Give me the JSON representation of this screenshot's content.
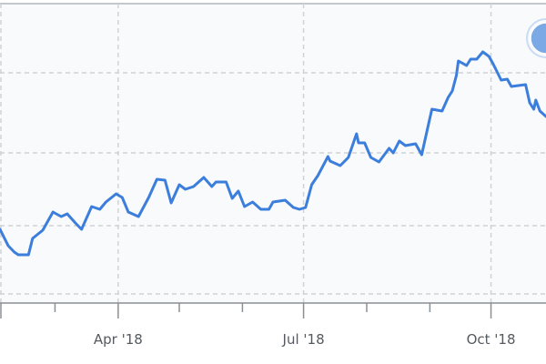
{
  "chart_data": {
    "type": "line",
    "title": "",
    "xlabel": "",
    "ylabel": "",
    "x_ticks": [
      {
        "date": "2018-02-01",
        "label": ""
      },
      {
        "date": "2018-03-01",
        "label": ""
      },
      {
        "date": "2018-04-01",
        "label": "Apr '18"
      },
      {
        "date": "2018-05-01",
        "label": ""
      },
      {
        "date": "2018-06-01",
        "label": ""
      },
      {
        "date": "2018-07-01",
        "label": "Jul '18"
      },
      {
        "date": "2018-08-01",
        "label": ""
      },
      {
        "date": "2018-09-01",
        "label": ""
      },
      {
        "date": "2018-10-01",
        "label": "Oct '18"
      }
    ],
    "x_gridlines": [
      "2018-02-01",
      "2018-04-01",
      "2018-07-01",
      "2018-10-01"
    ],
    "xlim": [
      "2018-02-02",
      "2018-10-28"
    ],
    "ylim": [
      7,
      336
    ],
    "y_gridlines": [
      17,
      92,
      172,
      260
    ],
    "y_tick_labels_visible": false,
    "grid": true,
    "legend": "none",
    "colors": {
      "line": "#3c7edb",
      "grid": "#cfd3d6",
      "axis": "#8a8f94",
      "plot_bg": "#f9fafb",
      "marker": "#7aa9e6"
    },
    "event_marker_icon": "flag-circle-icon",
    "series": [
      {
        "x": [
          "2018-02-02",
          "2018-02-06",
          "2018-02-09",
          "2018-02-11",
          "2018-02-16",
          "2018-02-18",
          "2018-02-23",
          "2018-02-28",
          "2018-03-04",
          "2018-03-07",
          "2018-03-11",
          "2018-03-14",
          "2018-03-19",
          "2018-03-23",
          "2018-03-26",
          "2018-03-31",
          "2018-04-03",
          "2018-04-06",
          "2018-04-11",
          "2018-04-16",
          "2018-04-20",
          "2018-04-24",
          "2018-04-27",
          "2018-05-01",
          "2018-05-04",
          "2018-05-08",
          "2018-05-13",
          "2018-05-17",
          "2018-05-19",
          "2018-05-24",
          "2018-05-27",
          "2018-05-30",
          "2018-06-02",
          "2018-06-06",
          "2018-06-10",
          "2018-06-14",
          "2018-06-16",
          "2018-06-22",
          "2018-06-26",
          "2018-06-29",
          "2018-07-02",
          "2018-07-05",
          "2018-07-08",
          "2018-07-13",
          "2018-07-14",
          "2018-07-19",
          "2018-07-23",
          "2018-07-25",
          "2018-07-27",
          "2018-07-28",
          "2018-07-31",
          "2018-08-03",
          "2018-08-07",
          "2018-08-12",
          "2018-08-14",
          "2018-08-17",
          "2018-08-20",
          "2018-08-25",
          "2018-08-28",
          "2018-08-31",
          "2018-09-02",
          "2018-09-07",
          "2018-09-10",
          "2018-09-12",
          "2018-09-14",
          "2018-09-15",
          "2018-09-19",
          "2018-09-21",
          "2018-09-24",
          "2018-09-27",
          "2018-09-30",
          "2018-10-02",
          "2018-10-06",
          "2018-10-09",
          "2018-10-11",
          "2018-10-18",
          "2018-10-20",
          "2018-10-22",
          "2018-10-23",
          "2018-10-25",
          "2018-10-28"
        ],
        "y": [
          88,
          70,
          63,
          60,
          60,
          78,
          87,
          107,
          102,
          105,
          95,
          88,
          113,
          110,
          118,
          127,
          123,
          107,
          102,
          123,
          143,
          142,
          117,
          137,
          132,
          135,
          145,
          135,
          140,
          140,
          122,
          130,
          113,
          118,
          110,
          110,
          118,
          120,
          112,
          110,
          112,
          137,
          147,
          168,
          163,
          158,
          167,
          180,
          193,
          183,
          183,
          167,
          162,
          177,
          172,
          185,
          180,
          182,
          170,
          200,
          220,
          218,
          233,
          240,
          257,
          273,
          268,
          275,
          275,
          283,
          278,
          270,
          252,
          253,
          245,
          247,
          227,
          220,
          230,
          218,
          212
        ]
      }
    ]
  }
}
